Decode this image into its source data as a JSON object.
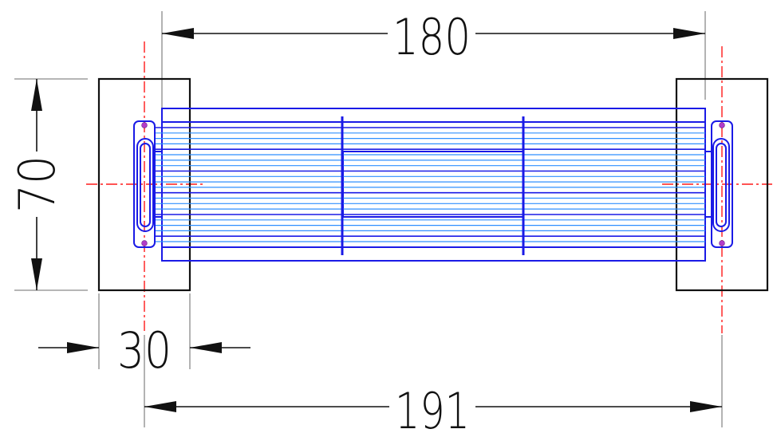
{
  "drawing": {
    "dimensions": {
      "width_top": "180",
      "height_left": "70",
      "block_width": "30",
      "overall_bottom": "191"
    },
    "colors": {
      "outline": "#111111",
      "core": "#1a1ae6",
      "tubes": "#2f8fff",
      "centerline": "#ff1a1a",
      "extension": "#8a8a8a"
    }
  }
}
